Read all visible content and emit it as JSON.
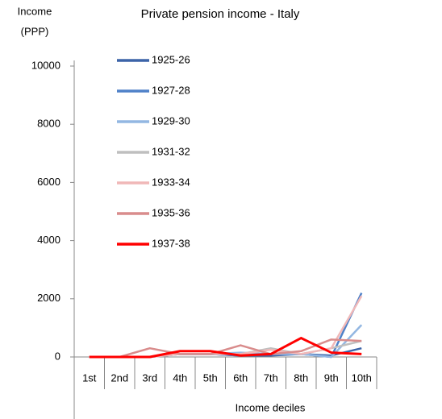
{
  "chart_data": {
    "type": "line",
    "title": "Private pension income - Italy",
    "y_label": [
      "Income",
      "(PPP)"
    ],
    "x_label": "Income deciles",
    "categories": [
      "1st",
      "2nd",
      "3rd",
      "4th",
      "5th",
      "6th",
      "7th",
      "8th",
      "9th",
      "10th"
    ],
    "ylim": [
      0,
      10000
    ],
    "yticks": [
      0,
      2000,
      4000,
      6000,
      8000,
      10000
    ],
    "legend": "upper-left",
    "series": [
      {
        "name": "1925-26",
        "color": "#3c64a8",
        "values": [
          0,
          0,
          0,
          100,
          100,
          50,
          50,
          100,
          50,
          300
        ]
      },
      {
        "name": "1927-28",
        "color": "#4f81c8",
        "values": [
          0,
          0,
          0,
          100,
          100,
          50,
          100,
          100,
          0,
          2200
        ]
      },
      {
        "name": "1929-30",
        "color": "#93b7e2",
        "values": [
          0,
          0,
          0,
          100,
          100,
          150,
          100,
          100,
          0,
          1100
        ]
      },
      {
        "name": "1931-32",
        "color": "#bfbfbf",
        "values": [
          0,
          0,
          0,
          100,
          100,
          100,
          300,
          100,
          300,
          550
        ]
      },
      {
        "name": "1933-34",
        "color": "#f0b8b8",
        "values": [
          0,
          0,
          0,
          100,
          100,
          100,
          250,
          100,
          300,
          2100
        ]
      },
      {
        "name": "1935-36",
        "color": "#d98c8c",
        "values": [
          0,
          0,
          300,
          100,
          100,
          400,
          100,
          200,
          600,
          550
        ]
      },
      {
        "name": "1937-38",
        "color": "#ff0000",
        "values": [
          0,
          0,
          0,
          200,
          200,
          50,
          100,
          650,
          150,
          100
        ]
      }
    ]
  }
}
